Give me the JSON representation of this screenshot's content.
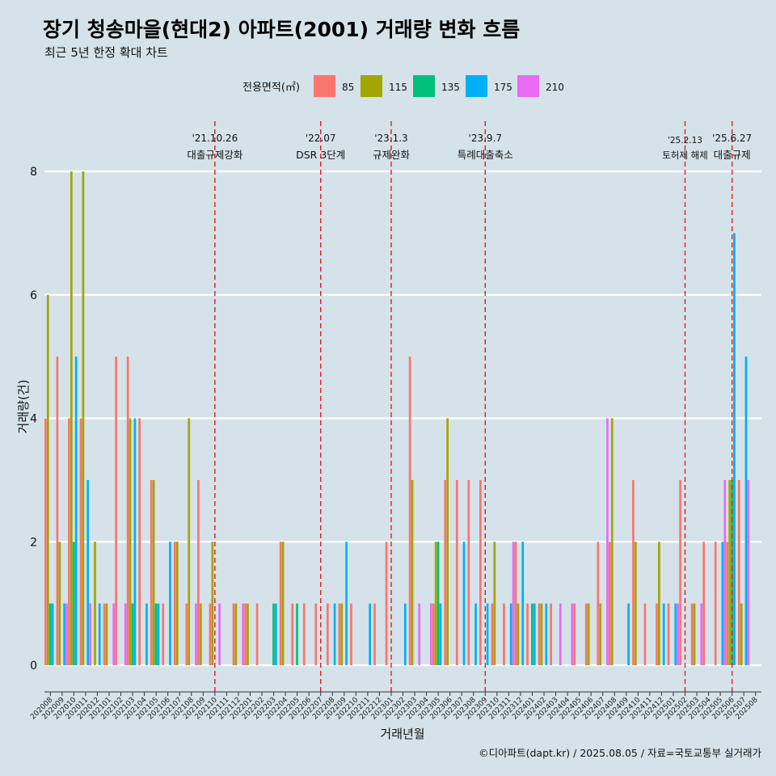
{
  "colors": {
    "background": "#d5e2e9",
    "grid": "#ffffff",
    "event_line": "#e31a1c",
    "series": {
      "85": "#f8766d",
      "115": "#a3a500",
      "135": "#00bf7d",
      "175": "#00b0f6",
      "210": "#e76bf3"
    }
  },
  "chart_data": {
    "type": "bar",
    "title": "장기 청송마을(현대2) 아파트(2001) 거래량 변화 흐름",
    "subtitle": "최근 5년 한정 확대 차트",
    "xlabel": "거래년월",
    "ylabel": "거래량(건)",
    "caption": "©디아파트(dapt.kr) / 2025.08.05 / 자료=국토교통부 실거래가",
    "legend": {
      "title": "전용면적(㎡)",
      "position": "top",
      "entries": [
        "85",
        "115",
        "135",
        "175",
        "210"
      ]
    },
    "ylim": [
      0,
      8
    ],
    "yticks": [
      "0",
      "2",
      "4",
      "6",
      "8"
    ],
    "categories": [
      "202008",
      "202009",
      "202010",
      "202011",
      "202012",
      "202101",
      "202102",
      "202103",
      "202104",
      "202105",
      "202106",
      "202107",
      "202108",
      "202109",
      "202110",
      "202111",
      "202112",
      "202201",
      "202202",
      "202203",
      "202204",
      "202205",
      "202206",
      "202207",
      "202208",
      "202209",
      "202210",
      "202211",
      "202212",
      "202301",
      "202302",
      "202303",
      "202304",
      "202305",
      "202306",
      "202307",
      "202308",
      "202309",
      "202310",
      "202311",
      "202312",
      "202401",
      "202402",
      "202403",
      "202404",
      "202405",
      "202406",
      "202407",
      "202408",
      "202409",
      "202410",
      "202411",
      "202412",
      "202501",
      "202502",
      "202503",
      "202504",
      "202505",
      "202506",
      "202507",
      "202508"
    ],
    "bars": [
      {
        "month": "202008",
        "values": {
          "85": 4,
          "115": 6,
          "135": 1,
          "175": 1
        }
      },
      {
        "month": "202009",
        "values": {
          "85": 5,
          "115": 2,
          "175": 1,
          "210": 1
        }
      },
      {
        "month": "202010",
        "values": {
          "85": 4,
          "115": 8,
          "135": 2,
          "175": 5
        }
      },
      {
        "month": "202011",
        "values": {
          "85": 4,
          "115": 8,
          "175": 3,
          "210": 1
        }
      },
      {
        "month": "202012",
        "values": {
          "115": 2,
          "175": 1
        }
      },
      {
        "month": "202101",
        "values": {
          "85": 1,
          "115": 1,
          "210": 1
        }
      },
      {
        "month": "202102",
        "values": {
          "85": 5,
          "210": 1
        }
      },
      {
        "month": "202103",
        "values": {
          "85": 5,
          "115": 4,
          "135": 1,
          "175": 4
        }
      },
      {
        "month": "202104",
        "values": {
          "85": 4,
          "175": 1
        }
      },
      {
        "month": "202105",
        "values": {
          "85": 3,
          "115": 3,
          "135": 1,
          "175": 1
        }
      },
      {
        "month": "202106",
        "values": {
          "85": 1,
          "175": 2
        }
      },
      {
        "month": "202107",
        "values": {
          "85": 2,
          "115": 2
        }
      },
      {
        "month": "202108",
        "values": {
          "85": 1,
          "115": 4,
          "210": 1
        }
      },
      {
        "month": "202109",
        "values": {
          "85": 3,
          "115": 1
        }
      },
      {
        "month": "202110",
        "values": {
          "85": 1,
          "115": 2,
          "210": 1
        }
      },
      {
        "month": "202111",
        "values": {}
      },
      {
        "month": "202112",
        "values": {
          "85": 1,
          "115": 1,
          "210": 1
        }
      },
      {
        "month": "202201",
        "values": {
          "85": 1,
          "115": 1
        }
      },
      {
        "month": "202202",
        "values": {
          "85": 1
        }
      },
      {
        "month": "202203",
        "values": {
          "135": 1,
          "175": 1
        }
      },
      {
        "month": "202204",
        "values": {
          "85": 2,
          "115": 2
        }
      },
      {
        "month": "202205",
        "values": {
          "85": 1,
          "135": 1
        }
      },
      {
        "month": "202206",
        "values": {
          "85": 1
        }
      },
      {
        "month": "202207",
        "values": {
          "85": 1
        }
      },
      {
        "month": "202208",
        "values": {
          "85": 1,
          "175": 1
        }
      },
      {
        "month": "202209",
        "values": {
          "85": 1,
          "115": 1,
          "175": 2
        }
      },
      {
        "month": "202210",
        "values": {
          "85": 1
        }
      },
      {
        "month": "202211",
        "values": {
          "175": 1
        }
      },
      {
        "month": "202212",
        "values": {
          "85": 1
        }
      },
      {
        "month": "202301",
        "values": {
          "85": 2
        }
      },
      {
        "month": "202302",
        "values": {
          "175": 1
        }
      },
      {
        "month": "202303",
        "values": {
          "85": 5,
          "115": 3,
          "210": 1
        }
      },
      {
        "month": "202304",
        "values": {
          "210": 1
        }
      },
      {
        "month": "202305",
        "values": {
          "85": 1,
          "115": 2,
          "135": 2,
          "175": 1
        }
      },
      {
        "month": "202306",
        "values": {
          "85": 3,
          "115": 4
        }
      },
      {
        "month": "202307",
        "values": {
          "85": 3,
          "175": 2
        }
      },
      {
        "month": "202308",
        "values": {
          "85": 3,
          "175": 1
        }
      },
      {
        "month": "202309",
        "values": {
          "85": 3,
          "175": 1
        }
      },
      {
        "month": "202310",
        "values": {
          "85": 1,
          "115": 2
        }
      },
      {
        "month": "202311",
        "values": {
          "85": 1,
          "175": 1,
          "210": 2
        }
      },
      {
        "month": "202312",
        "values": {
          "85": 2,
          "115": 1,
          "175": 2
        }
      },
      {
        "month": "202401",
        "values": {
          "85": 1,
          "135": 1,
          "175": 1
        }
      },
      {
        "month": "202402",
        "values": {
          "85": 1,
          "115": 1,
          "175": 1
        }
      },
      {
        "month": "202403",
        "values": {
          "85": 1,
          "210": 1
        }
      },
      {
        "month": "202404",
        "values": {
          "210": 1
        }
      },
      {
        "month": "202405",
        "values": {
          "85": 1
        }
      },
      {
        "month": "202406",
        "values": {
          "85": 1,
          "115": 1
        }
      },
      {
        "month": "202407",
        "values": {
          "85": 2,
          "115": 1,
          "210": 4
        }
      },
      {
        "month": "202408",
        "values": {
          "85": 2,
          "115": 4
        }
      },
      {
        "month": "202409",
        "values": {
          "175": 1
        }
      },
      {
        "month": "202410",
        "values": {
          "85": 3,
          "115": 2
        }
      },
      {
        "month": "202411",
        "values": {
          "85": 1
        }
      },
      {
        "month": "202412",
        "values": {
          "85": 1,
          "115": 2,
          "175": 1
        }
      },
      {
        "month": "202501",
        "values": {
          "85": 1,
          "175": 1,
          "210": 1
        }
      },
      {
        "month": "202502",
        "values": {
          "85": 3
        }
      },
      {
        "month": "202503",
        "values": {
          "85": 1,
          "115": 1,
          "210": 1
        }
      },
      {
        "month": "202504",
        "values": {
          "85": 2
        }
      },
      {
        "month": "202505",
        "values": {
          "85": 2,
          "175": 2,
          "210": 3
        }
      },
      {
        "month": "202506",
        "values": {
          "85": 2,
          "115": 3,
          "135": 3,
          "175": 7
        }
      },
      {
        "month": "202507",
        "values": {
          "85": 3,
          "115": 1,
          "175": 5,
          "210": 3
        }
      },
      {
        "month": "202508",
        "values": {}
      }
    ],
    "events": [
      {
        "date": "'21.10.26",
        "label": "대출규제강화",
        "month": "202110"
      },
      {
        "date": "'22.07",
        "label": "DSR 3단계",
        "month": "202207"
      },
      {
        "date": "'23.1.3",
        "label": "규제완화",
        "month": "202301"
      },
      {
        "date": "'23.9.7",
        "label": "특례대출축소",
        "month": "202309"
      },
      {
        "date": "'25.2.13",
        "label": "토허제 해제",
        "month": "202502"
      },
      {
        "date": "'25.6.27",
        "label": "대출규제",
        "month": "202506"
      }
    ]
  }
}
